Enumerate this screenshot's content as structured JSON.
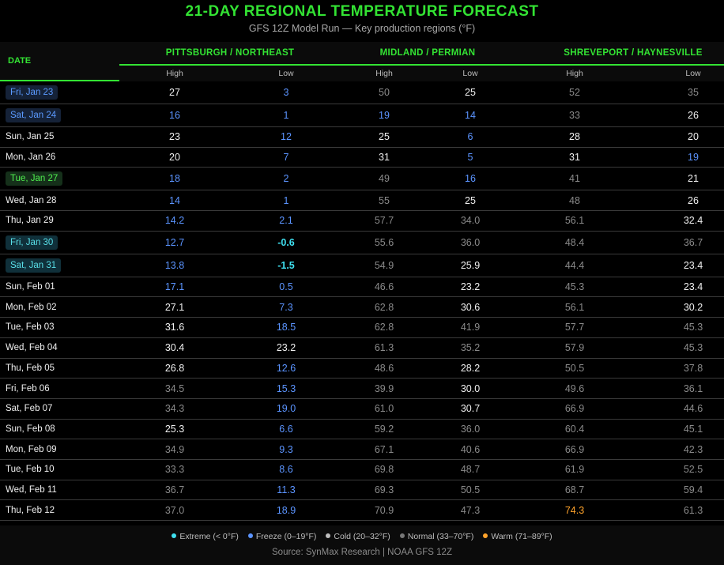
{
  "title": "21-DAY REGIONAL TEMPERATURE FORECAST",
  "subtitle": "GFS 12Z Model Run — Key production regions (°F)",
  "date_header": "DATE",
  "source": "Source: SynMax Research | NOAA GFS 12Z",
  "colors": {
    "accent": "#33e333",
    "extreme": "#3fe0f0",
    "freeze": "#5b94ff",
    "cold": "#f0f0f0",
    "normal": "#8a8a8a",
    "warm": "#ffa32b"
  },
  "legend": [
    {
      "label": "Extreme (< 0°F)",
      "color": "#3fe0f0"
    },
    {
      "label": "Freeze (0–19°F)",
      "color": "#5b94ff"
    },
    {
      "label": "Cold (20–32°F)",
      "color": "#bdbdbd"
    },
    {
      "label": "Normal (33–70°F)",
      "color": "#777777"
    },
    {
      "label": "Warm (71–89°F)",
      "color": "#ffa32b"
    }
  ],
  "chart_data": {
    "type": "table",
    "regions": [
      "PITTSBURGH / NORTHEAST",
      "MIDLAND / PERMIAN",
      "SHREVEPORT / HAYNESVILLE"
    ],
    "columns": [
      "High",
      "Low",
      "High",
      "Low",
      "High",
      "Low"
    ],
    "rows": [
      {
        "date": "Fri, Jan 23",
        "badge": "blue",
        "values": [
          "27",
          "3",
          "50",
          "25",
          "52",
          "35"
        ]
      },
      {
        "date": "Sat, Jan 24",
        "badge": "blue",
        "values": [
          "16",
          "1",
          "19",
          "14",
          "33",
          "26"
        ]
      },
      {
        "date": "Sun, Jan 25",
        "badge": "",
        "values": [
          "23",
          "12",
          "25",
          "6",
          "28",
          "20"
        ]
      },
      {
        "date": "Mon, Jan 26",
        "badge": "",
        "values": [
          "20",
          "7",
          "31",
          "5",
          "31",
          "19"
        ]
      },
      {
        "date": "Tue, Jan 27",
        "badge": "green",
        "values": [
          "18",
          "2",
          "49",
          "16",
          "41",
          "21"
        ]
      },
      {
        "date": "Wed, Jan 28",
        "badge": "",
        "values": [
          "14",
          "1",
          "55",
          "25",
          "48",
          "26"
        ]
      },
      {
        "date": "Thu, Jan 29",
        "badge": "",
        "values": [
          "14.2",
          "2.1",
          "57.7",
          "34.0",
          "56.1",
          "32.4"
        ]
      },
      {
        "date": "Fri, Jan 30",
        "badge": "teal",
        "values": [
          "12.7",
          "-0.6",
          "55.6",
          "36.0",
          "48.4",
          "36.7"
        ]
      },
      {
        "date": "Sat, Jan 31",
        "badge": "teal",
        "values": [
          "13.8",
          "-1.5",
          "54.9",
          "25.9",
          "44.4",
          "23.4"
        ]
      },
      {
        "date": "Sun, Feb 01",
        "badge": "",
        "values": [
          "17.1",
          "0.5",
          "46.6",
          "23.2",
          "45.3",
          "23.4"
        ]
      },
      {
        "date": "Mon, Feb 02",
        "badge": "",
        "values": [
          "27.1",
          "7.3",
          "62.8",
          "30.6",
          "56.1",
          "30.2"
        ]
      },
      {
        "date": "Tue, Feb 03",
        "badge": "",
        "values": [
          "31.6",
          "18.5",
          "62.8",
          "41.9",
          "57.7",
          "45.3"
        ]
      },
      {
        "date": "Wed, Feb 04",
        "badge": "",
        "values": [
          "30.4",
          "23.2",
          "61.3",
          "35.2",
          "57.9",
          "45.3"
        ]
      },
      {
        "date": "Thu, Feb 05",
        "badge": "",
        "values": [
          "26.8",
          "12.6",
          "48.6",
          "28.2",
          "50.5",
          "37.8"
        ]
      },
      {
        "date": "Fri, Feb 06",
        "badge": "",
        "values": [
          "34.5",
          "15.3",
          "39.9",
          "30.0",
          "49.6",
          "36.1"
        ]
      },
      {
        "date": "Sat, Feb 07",
        "badge": "",
        "values": [
          "34.3",
          "19.0",
          "61.0",
          "30.7",
          "66.9",
          "44.6"
        ]
      },
      {
        "date": "Sun, Feb 08",
        "badge": "",
        "values": [
          "25.3",
          "6.6",
          "59.2",
          "36.0",
          "60.4",
          "45.1"
        ]
      },
      {
        "date": "Mon, Feb 09",
        "badge": "",
        "values": [
          "34.9",
          "9.3",
          "67.1",
          "40.6",
          "66.9",
          "42.3"
        ]
      },
      {
        "date": "Tue, Feb 10",
        "badge": "",
        "values": [
          "33.3",
          "8.6",
          "69.8",
          "48.7",
          "61.9",
          "52.5"
        ]
      },
      {
        "date": "Wed, Feb 11",
        "badge": "",
        "values": [
          "36.7",
          "11.3",
          "69.3",
          "50.5",
          "68.7",
          "59.4"
        ]
      },
      {
        "date": "Thu, Feb 12",
        "badge": "",
        "values": [
          "37.0",
          "18.9",
          "70.9",
          "47.3",
          "74.3",
          "61.3"
        ]
      }
    ]
  }
}
